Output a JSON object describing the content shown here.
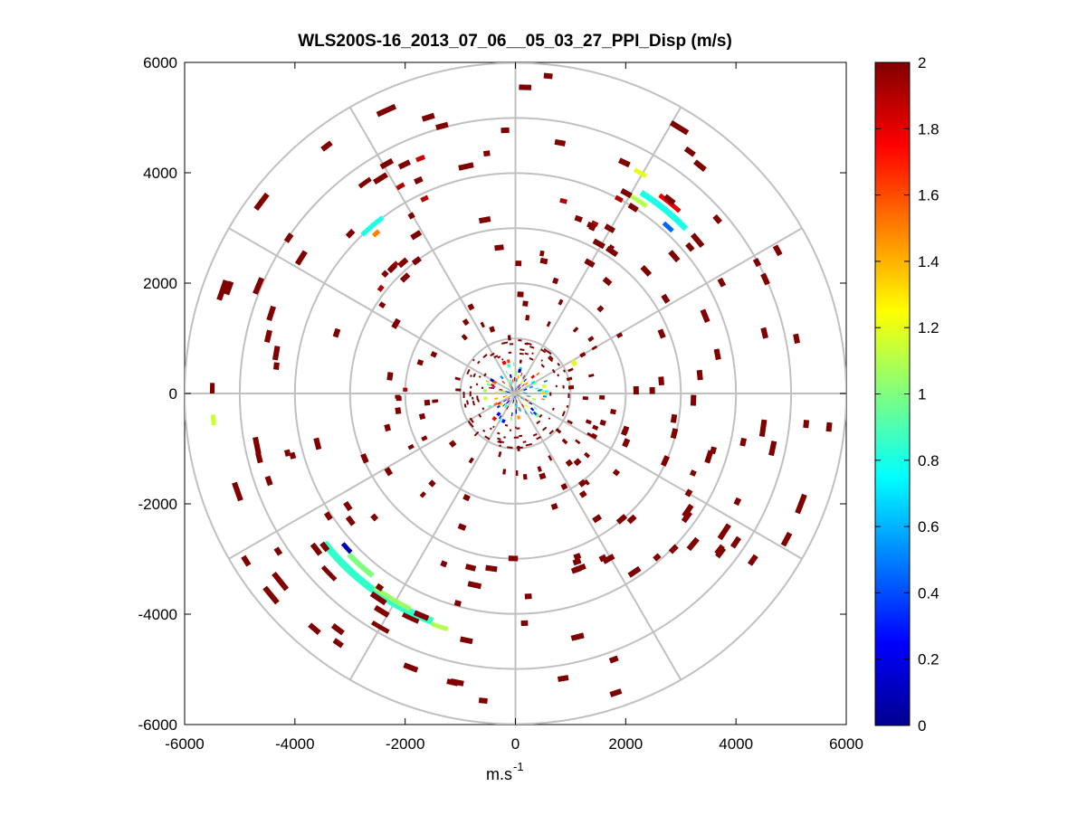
{
  "chart_data": {
    "type": "polar-scatter (PPI)",
    "title": "WLS200S-16_2013_07_06__05_03_27_PPI_Disp (m/s)",
    "xlabel_base": "m.s",
    "xlabel_sup": "-1",
    "xlim": [
      -6000,
      6000
    ],
    "ylim": [
      -6000,
      6000
    ],
    "xticks": [
      -6000,
      -4000,
      -2000,
      0,
      2000,
      4000,
      6000
    ],
    "yticks": [
      -6000,
      -4000,
      -2000,
      0,
      2000,
      4000,
      6000
    ],
    "xtick_labels": [
      "-6000",
      "-4000",
      "-2000",
      "0",
      "2000",
      "4000",
      "6000"
    ],
    "ytick_labels": [
      "-6000",
      "-4000",
      "-2000",
      "0",
      "2000",
      "4000",
      "6000"
    ],
    "range_rings": [
      1000,
      2000,
      3000,
      4000,
      5000,
      6000
    ],
    "spokes_deg": [
      0,
      30,
      60,
      90,
      120,
      150,
      180,
      210,
      240,
      270,
      300,
      330
    ],
    "colorbar": {
      "colormap": "jet",
      "min": 0,
      "max": 2,
      "ticks": [
        0,
        0.2,
        0.4,
        0.6,
        0.8,
        1,
        1.2,
        1.4,
        1.6,
        1.8,
        2
      ],
      "tick_labels": [
        "0",
        "0.2",
        "0.4",
        "0.6",
        "0.8",
        "1",
        "1.2",
        "1.4",
        "1.6",
        "1.8",
        "2"
      ]
    },
    "arcs": [
      {
        "r": 4400,
        "az_from": 200,
        "az_to": 232,
        "value": 0.85,
        "width": 120
      },
      {
        "r": 4350,
        "az_from": 206,
        "az_to": 216,
        "value": 1.05,
        "width": 80
      },
      {
        "r": 4200,
        "az_from": 218,
        "az_to": 226,
        "value": 1.0,
        "width": 90
      },
      {
        "r": 4500,
        "az_from": 203,
        "az_to": 207,
        "value": 2.0,
        "width": 60
      },
      {
        "r": 4150,
        "az_from": 226,
        "az_to": 229,
        "value": 0.1,
        "width": 60
      },
      {
        "r": 4450,
        "az_from": 196,
        "az_to": 200,
        "value": 1.1,
        "width": 70
      },
      {
        "r": 4900,
        "az_from": 208,
        "az_to": 212,
        "value": 2.0,
        "width": 70
      },
      {
        "r": 4700,
        "az_from": 224,
        "az_to": 228,
        "value": 2.0,
        "width": 70
      },
      {
        "r": 4300,
        "az_from": 32,
        "az_to": 46,
        "value": 0.8,
        "width": 100
      },
      {
        "r": 4450,
        "az_from": 36,
        "az_to": 42,
        "value": 1.8,
        "width": 60
      },
      {
        "r": 4150,
        "az_from": 30,
        "az_to": 35,
        "value": 1.1,
        "width": 60
      },
      {
        "r": 4100,
        "az_from": 41,
        "az_to": 44,
        "value": 0.45,
        "width": 60
      },
      {
        "r": 4600,
        "az_from": 28,
        "az_to": 31,
        "value": 1.2,
        "width": 60
      },
      {
        "r": 4000,
        "az_from": 316,
        "az_to": 323,
        "value": 0.8,
        "width": 80
      },
      {
        "r": 3850,
        "az_from": 318,
        "az_to": 320,
        "value": 1.5,
        "width": 60
      },
      {
        "r": 4700,
        "az_from": 323,
        "az_to": 326,
        "value": 2.0,
        "width": 60
      },
      {
        "r": 5500,
        "az_from": 264,
        "az_to": 266,
        "value": 1.15,
        "width": 60
      },
      {
        "r": 4600,
        "az_from": 337,
        "az_to": 339,
        "value": 1.85,
        "width": 60
      },
      {
        "r": 4300,
        "az_from": 330,
        "az_to": 332,
        "value": 1.9,
        "width": 60
      },
      {
        "r": 3900,
        "az_from": 334,
        "az_to": 336,
        "value": 1.9,
        "width": 60
      },
      {
        "r": 3100,
        "az_from": 307,
        "az_to": 309,
        "value": 1.9,
        "width": 60
      },
      {
        "r": 3200,
        "az_from": 315,
        "az_to": 318,
        "value": 1.9,
        "width": 60
      },
      {
        "r": 3600,
        "az_from": 13,
        "az_to": 15,
        "value": 1.9,
        "width": 60
      },
      {
        "r": 4000,
        "az_from": 27,
        "az_to": 29,
        "value": 1.9,
        "width": 60
      },
      {
        "r": 3400,
        "az_from": 24,
        "az_to": 26,
        "value": 1.9,
        "width": 60
      },
      {
        "r": 5500,
        "az_from": 270,
        "az_to": 272,
        "value": 2.0,
        "width": 60
      },
      {
        "r": 2000,
        "az_from": 271,
        "az_to": 273,
        "value": 1.9,
        "width": 60
      },
      {
        "r": 1200,
        "az_from": 60,
        "az_to": 65,
        "value": 1.2,
        "width": 50
      }
    ]
  }
}
